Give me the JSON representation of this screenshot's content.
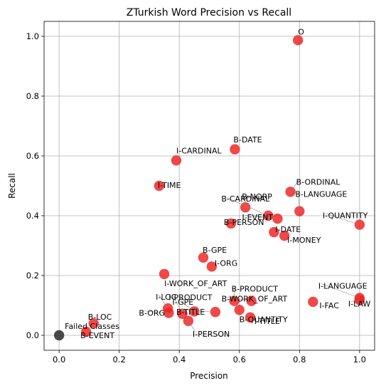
{
  "chart_data": {
    "type": "scatter",
    "title": "ZTurkish Word Precision vs Recall",
    "xlabel": "Precision",
    "ylabel": "Recall",
    "xlim": [
      -0.05,
      1.05
    ],
    "ylim": [
      -0.05,
      1.05
    ],
    "xticks": [
      "0.0",
      "0.2",
      "0.4",
      "0.6",
      "0.8",
      "1.0"
    ],
    "yticks": [
      "0.0",
      "0.2",
      "0.4",
      "0.6",
      "0.8",
      "1.0"
    ],
    "grid": true,
    "colors": {
      "success": "#ee2020",
      "failed": "#222222"
    },
    "points": [
      {
        "label": "O",
        "x": 0.795,
        "y": 0.987,
        "status": "success"
      },
      {
        "label": "B-DATE",
        "x": 0.585,
        "y": 0.622,
        "status": "success"
      },
      {
        "label": "I-CARDINAL",
        "x": 0.39,
        "y": 0.585,
        "status": "success"
      },
      {
        "label": "I-TIME",
        "x": 0.333,
        "y": 0.5,
        "status": "success"
      },
      {
        "label": "B-ORDINAL",
        "x": 0.77,
        "y": 0.48,
        "status": "success"
      },
      {
        "label": "B-CARDINAL",
        "x": 0.696,
        "y": 0.4,
        "status": "success"
      },
      {
        "label": "B-NORP",
        "x": 0.62,
        "y": 0.428,
        "status": "success"
      },
      {
        "label": "B-LANGUAGE",
        "x": 0.8,
        "y": 0.415,
        "status": "success"
      },
      {
        "label": "I-EVENT",
        "x": 0.727,
        "y": 0.39,
        "status": "success"
      },
      {
        "label": "I-QUANTITY",
        "x": 1.0,
        "y": 0.37,
        "status": "success"
      },
      {
        "label": "B-PERSON",
        "x": 0.572,
        "y": 0.374,
        "status": "success"
      },
      {
        "label": "I-DATE",
        "x": 0.715,
        "y": 0.345,
        "status": "success"
      },
      {
        "label": "I-MONEY",
        "x": 0.75,
        "y": 0.333,
        "status": "success"
      },
      {
        "label": "B-GPE",
        "x": 0.48,
        "y": 0.26,
        "status": "success"
      },
      {
        "label": "I-ORG",
        "x": 0.508,
        "y": 0.23,
        "status": "success"
      },
      {
        "label": "I-WORK_OF_ART",
        "x": 0.35,
        "y": 0.205,
        "status": "success"
      },
      {
        "label": "B-PRODUCT",
        "x": 0.583,
        "y": 0.115,
        "status": "success"
      },
      {
        "label": "I-LANGUAGE",
        "x": 1.0,
        "y": 0.125,
        "status": "success"
      },
      {
        "label": "I-LAW",
        "x": 1.0,
        "y": 0.118,
        "status": "success"
      },
      {
        "label": "B-WORK_OF_ART",
        "x": 0.64,
        "y": 0.115,
        "status": "success"
      },
      {
        "label": "I-FAC",
        "x": 0.845,
        "y": 0.112,
        "status": "success"
      },
      {
        "label": "I-PRODUCT",
        "x": 0.45,
        "y": 0.08,
        "status": "success"
      },
      {
        "label": "I-LOC",
        "x": 0.362,
        "y": 0.09,
        "status": "success"
      },
      {
        "label": "B-QUANTITY",
        "x": 0.6,
        "y": 0.085,
        "status": "success"
      },
      {
        "label": "I-GPE",
        "x": 0.41,
        "y": 0.072,
        "status": "success"
      },
      {
        "label": "B-ORG",
        "x": 0.365,
        "y": 0.075,
        "status": "success"
      },
      {
        "label": "B-TITLE",
        "x": 0.52,
        "y": 0.078,
        "status": "success"
      },
      {
        "label": "I-TITLE",
        "x": 0.636,
        "y": 0.06,
        "status": "success"
      },
      {
        "label": "I-PERSON",
        "x": 0.43,
        "y": 0.048,
        "status": "success"
      },
      {
        "label": "B-LOC",
        "x": 0.115,
        "y": 0.04,
        "status": "success"
      },
      {
        "label": "B-EVENT",
        "x": 0.09,
        "y": 0.012,
        "status": "success"
      },
      {
        "label": "Failed Classes",
        "x": 0.0,
        "y": 0.0,
        "status": "failed"
      }
    ]
  }
}
